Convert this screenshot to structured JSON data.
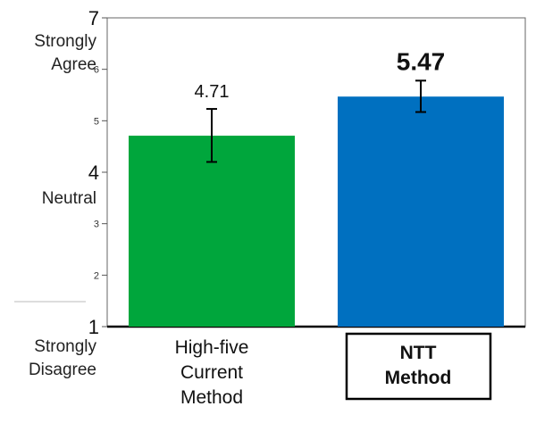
{
  "chart_data": {
    "type": "bar",
    "categories": [
      {
        "lines": [
          "High-five",
          "Current",
          "Method"
        ],
        "boxed": false
      },
      {
        "lines": [
          "NTT",
          "Method"
        ],
        "boxed": true
      }
    ],
    "values": [
      4.71,
      5.47
    ],
    "error_low": [
      4.2,
      5.17
    ],
    "error_high": [
      5.23,
      5.78
    ],
    "value_labels": [
      "4.71",
      "5.47"
    ],
    "colors": [
      "#00a63c",
      "#0070c0"
    ],
    "ylim": [
      1,
      7
    ],
    "yticks": [
      {
        "value": 7,
        "label": "7",
        "major": true
      },
      {
        "value": 6,
        "label": "6",
        "major": false
      },
      {
        "value": 5,
        "label": "5",
        "major": false
      },
      {
        "value": 4,
        "label": "4",
        "major": true
      },
      {
        "value": 3,
        "label": "3",
        "major": false
      },
      {
        "value": 2,
        "label": "2",
        "major": false
      },
      {
        "value": 1,
        "label": "1",
        "major": true
      }
    ],
    "side_labels": [
      {
        "lines": [
          "Strongly",
          "Agree"
        ],
        "anchor_value": 7
      },
      {
        "lines": [
          "Neutral"
        ],
        "anchor_value": 4
      },
      {
        "lines": [
          "Strongly",
          "Disagree"
        ],
        "anchor_value": 1
      }
    ],
    "grid": false,
    "legend": "none"
  }
}
